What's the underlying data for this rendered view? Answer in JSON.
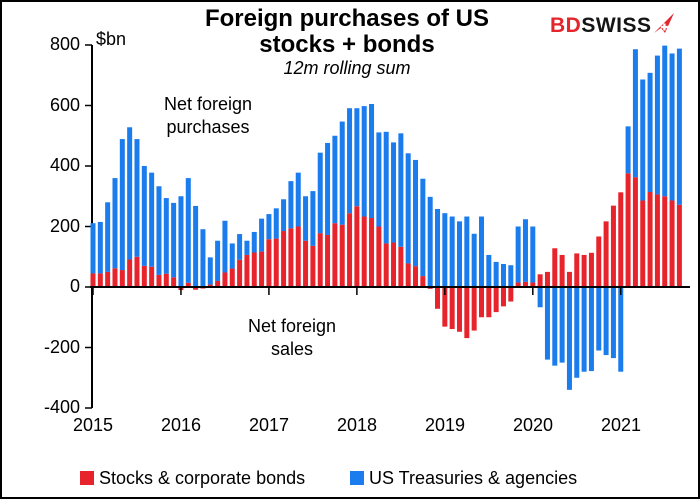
{
  "title": {
    "line1": "Foreign purchases of US",
    "line2": "stocks + bonds",
    "subtitle": "12m rolling sum"
  },
  "logo": {
    "prefix": "BD",
    "suffix": "SWISS"
  },
  "y_axis_unit": "$bn",
  "annotations": {
    "purchases_line1": "Net foreign",
    "purchases_line2": "purchases",
    "sales_line1": "Net foreign",
    "sales_line2": "sales"
  },
  "legend": {
    "items": [
      {
        "label": "Stocks & corporate bonds",
        "color": "#e7232b"
      },
      {
        "label": "US Treasuries & agencies",
        "color": "#1b7ced"
      }
    ]
  },
  "chart_data": {
    "type": "bar",
    "stacked": true,
    "title": "Foreign purchases of US stocks + bonds",
    "subtitle": "12m rolling sum",
    "unit": "$bn",
    "x_monthly_from": "2015-01",
    "x_monthly_to": "2021-09",
    "x_tick_labels": [
      "2015",
      "2016",
      "2017",
      "2018",
      "2019",
      "2020",
      "2021"
    ],
    "y_ticks": [
      800,
      600,
      400,
      200,
      0,
      -200,
      -400
    ],
    "y_tick_labels": [
      "800",
      "600",
      "400",
      "200",
      "0",
      "-200",
      "-400"
    ],
    "ylim": [
      -400,
      820
    ],
    "grid": false,
    "legend_position": "bottom",
    "series": [
      {
        "name": "Stocks & corporate bonds",
        "color": "#e7232b",
        "values": [
          45,
          45,
          50,
          62,
          56,
          91,
          100,
          70,
          67,
          40,
          44,
          32,
          -10,
          14,
          -9,
          -5,
          8,
          20,
          48,
          61,
          90,
          106,
          114,
          117,
          158,
          160,
          185,
          194,
          200,
          153,
          136,
          178,
          172,
          211,
          206,
          244,
          267,
          233,
          228,
          200,
          144,
          147,
          133,
          78,
          69,
          36,
          -6,
          -72,
          -131,
          -139,
          -148,
          -169,
          -144,
          -100,
          -100,
          -83,
          -64,
          -48,
          15,
          17,
          15,
          42,
          50,
          128,
          106,
          50,
          111,
          106,
          113,
          167,
          217,
          269,
          313,
          376,
          363,
          286,
          314,
          306,
          300,
          286,
          272
        ]
      },
      {
        "name": "US Treasuries & agencies",
        "color": "#1b7ced",
        "values": [
          166,
          170,
          230,
          298,
          433,
          437,
          389,
          330,
          311,
          293,
          250,
          246,
          300,
          346,
          268,
          191,
          90,
          133,
          171,
          83,
          85,
          47,
          68,
          109,
          83,
          100,
          105,
          156,
          178,
          147,
          181,
          266,
          304,
          289,
          341,
          347,
          324,
          365,
          377,
          311,
          369,
          331,
          375,
          364,
          351,
          322,
          298,
          258,
          244,
          233,
          217,
          233,
          176,
          233,
          106,
          83,
          76,
          72,
          185,
          207,
          185,
          -67,
          -240,
          -260,
          -250,
          -340,
          -300,
          -280,
          -278,
          -210,
          -225,
          -235,
          -280,
          155,
          423,
          400,
          394,
          459,
          498,
          486,
          516
        ]
      }
    ]
  }
}
